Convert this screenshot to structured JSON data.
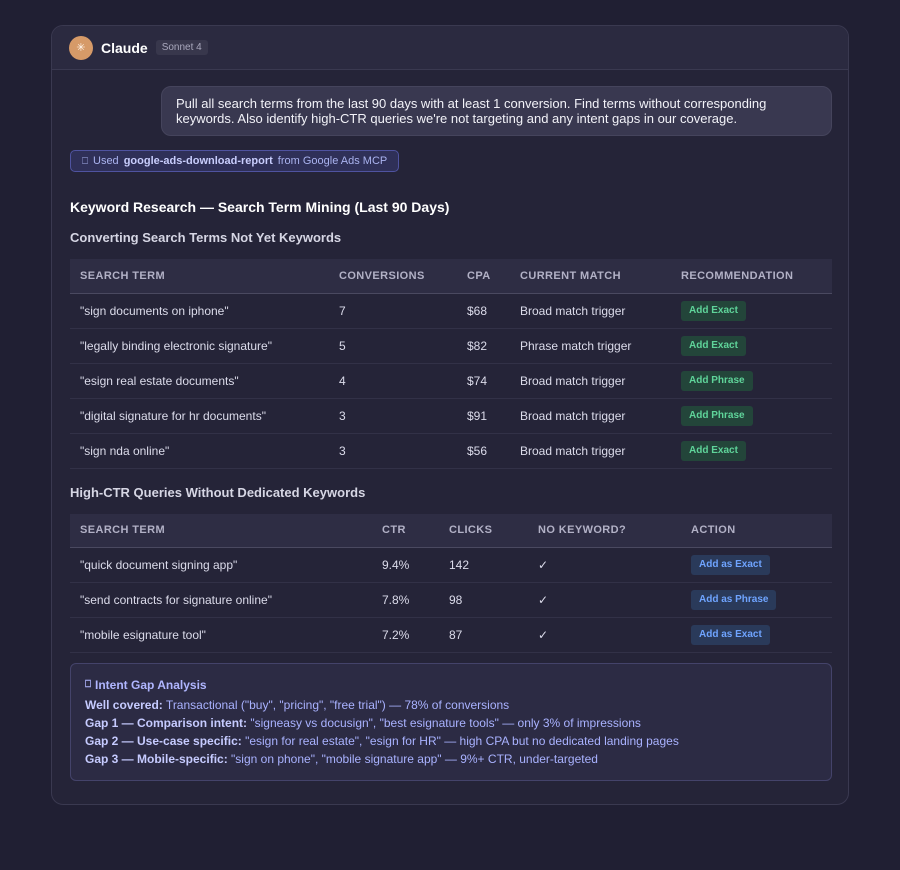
{
  "header": {
    "avatar_glyph": "✳",
    "app_name": "Claude",
    "model_badge": "Sonnet 4"
  },
  "user_message": "Pull all search terms from the last 90 days with at least 1 conversion. Find terms without corresponding keywords. Also identify high-CTR queries we're not targeting and any intent gaps in our coverage.",
  "tool_use": {
    "icon": "⎕",
    "prefix": "Used",
    "tool_name": "google-ads-download-report",
    "suffix": "from Google Ads MCP"
  },
  "report": {
    "title": "Keyword Research — Search Term Mining (Last 90 Days)",
    "section1": {
      "heading": "Converting Search Terms Not Yet Keywords",
      "columns": [
        "SEARCH TERM",
        "CONVERSIONS",
        "CPA",
        "CURRENT MATCH",
        "RECOMMENDATION"
      ],
      "rows": [
        {
          "term": "\"sign documents on iphone\"",
          "conversions": "7",
          "cpa": "$68",
          "match": "Broad match trigger",
          "rec": "Add Exact"
        },
        {
          "term": "\"legally binding electronic signature\"",
          "conversions": "5",
          "cpa": "$82",
          "match": "Phrase match trigger",
          "rec": "Add Exact"
        },
        {
          "term": "\"esign real estate documents\"",
          "conversions": "4",
          "cpa": "$74",
          "match": "Broad match trigger",
          "rec": "Add Phrase"
        },
        {
          "term": "\"digital signature for hr documents\"",
          "conversions": "3",
          "cpa": "$91",
          "match": "Broad match trigger",
          "rec": "Add Phrase"
        },
        {
          "term": "\"sign nda online\"",
          "conversions": "3",
          "cpa": "$56",
          "match": "Broad match trigger",
          "rec": "Add Exact"
        }
      ]
    },
    "section2": {
      "heading": "High-CTR Queries Without Dedicated Keywords",
      "columns": [
        "SEARCH TERM",
        "CTR",
        "CLICKS",
        "NO KEYWORD?",
        "ACTION"
      ],
      "rows": [
        {
          "term": "\"quick document signing app\"",
          "ctr": "9.4%",
          "clicks": "142",
          "no_keyword": "✓",
          "action": "Add as Exact"
        },
        {
          "term": "\"send contracts for signature online\"",
          "ctr": "7.8%",
          "clicks": "98",
          "no_keyword": "✓",
          "action": "Add as Phrase"
        },
        {
          "term": "\"mobile esignature tool\"",
          "ctr": "7.2%",
          "clicks": "87",
          "no_keyword": "✓",
          "action": "Add as Exact"
        }
      ]
    },
    "intent_gap": {
      "icon": "⎕",
      "title": "Intent Gap Analysis",
      "lines": [
        {
          "label": "Well covered:",
          "text": " Transactional (\"buy\", \"pricing\", \"free trial\") — 78% of conversions"
        },
        {
          "label": "Gap 1 — Comparison intent:",
          "text": " \"signeasy vs docusign\", \"best esignature tools\" — only 3% of impressions"
        },
        {
          "label": "Gap 2 — Use-case specific:",
          "text": " \"esign for real estate\", \"esign for HR\" — high CPA but no dedicated landing pages"
        },
        {
          "label": "Gap 3 — Mobile-specific:",
          "text": " \"sign on phone\", \"mobile signature app\" — 9%+ CTR, under-targeted"
        }
      ]
    }
  },
  "colors": {
    "background": "#201f33",
    "panel": "#252438",
    "accent_green": "#5fd49a",
    "accent_blue": "#6fa4ff",
    "accent_purple": "#b0b6ff"
  }
}
